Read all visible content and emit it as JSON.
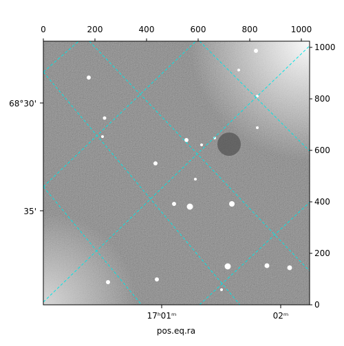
{
  "chart_data": {
    "type": "image",
    "xlim": [
      0,
      1032
    ],
    "xticks": [
      0,
      200,
      400,
      600,
      800,
      1000
    ],
    "ylim": [
      0,
      1024
    ],
    "yticks": [
      0,
      200,
      400,
      600,
      800,
      1000
    ],
    "x_world_labels": [
      "17ʰ01ᵐ",
      "02ᵐ"
    ],
    "y_world_labels": [
      "68°30'",
      "35'"
    ],
    "xlabel": "pos.eq.ra",
    "grid_color": "#00e5e5"
  }
}
